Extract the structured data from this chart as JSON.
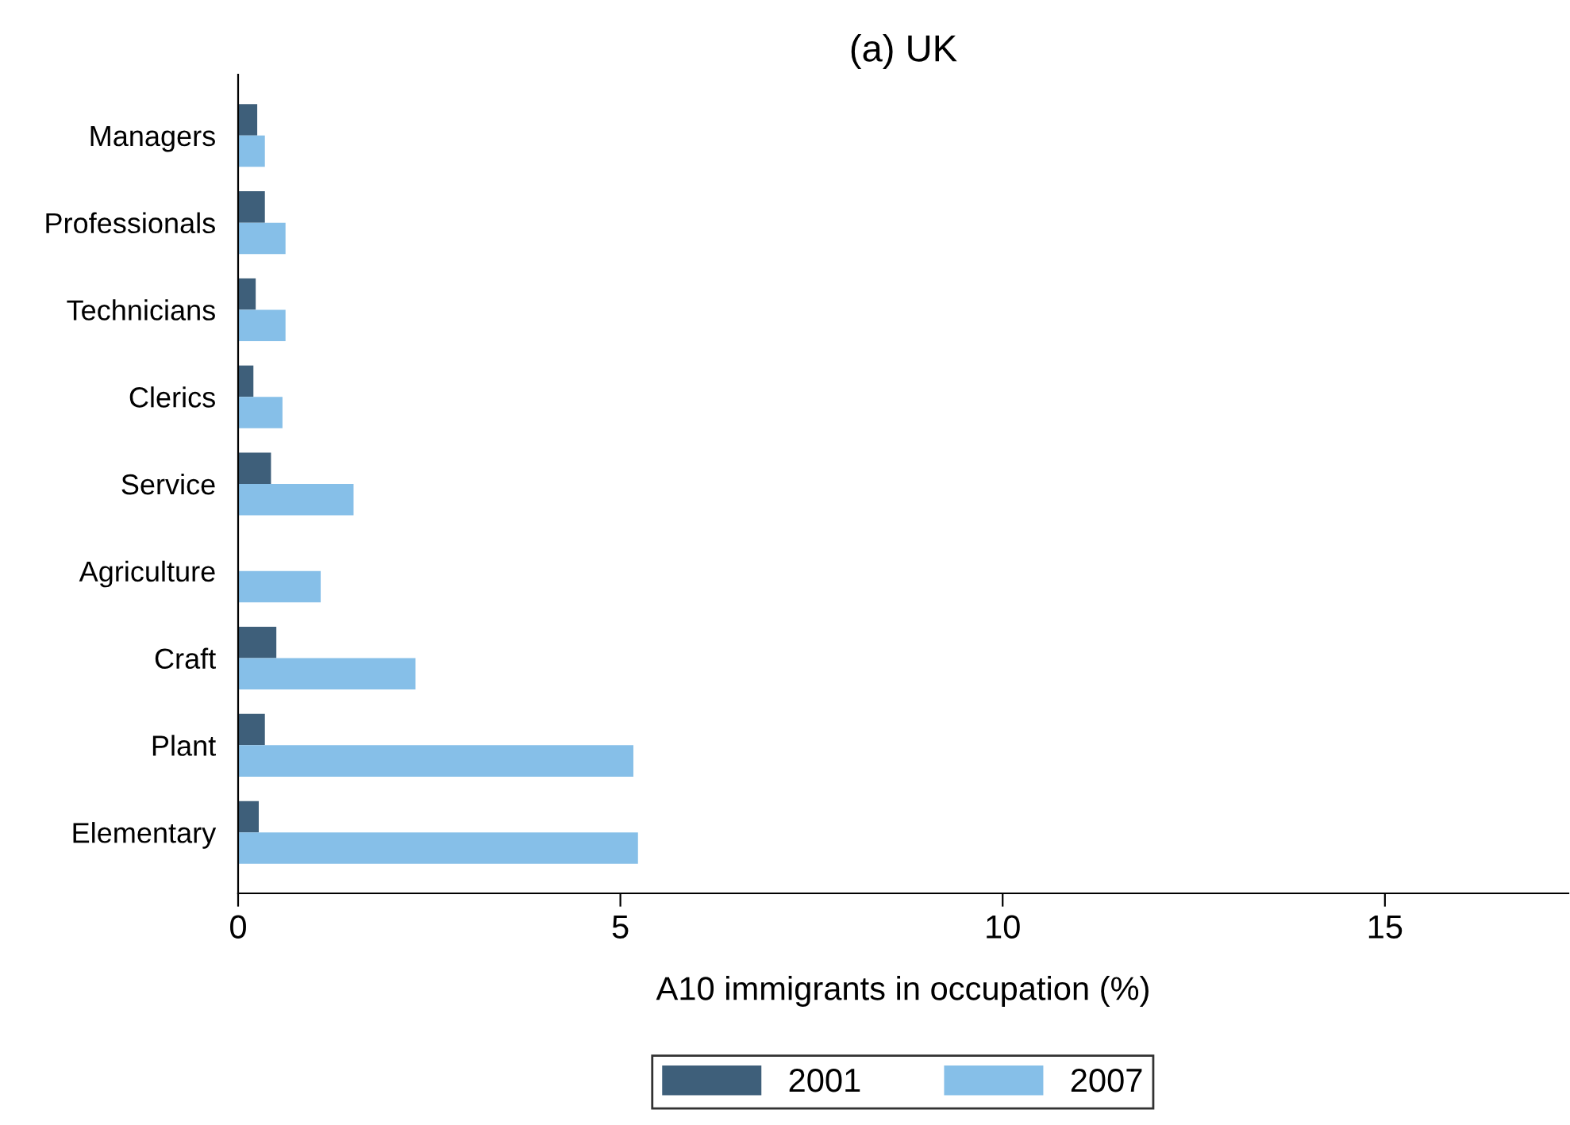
{
  "chart_data": {
    "type": "bar",
    "orientation": "horizontal",
    "title": "(a) UK",
    "xlabel": "A10 immigrants in occupation (%)",
    "categories": [
      "Managers",
      "Professionals",
      "Technicians",
      "Clerics",
      "Service",
      "Agriculture",
      "Craft",
      "Plant",
      "Elementary"
    ],
    "series": [
      {
        "name": "2001",
        "color": "#3e5f7a",
        "values": [
          0.25,
          0.35,
          0.23,
          0.2,
          0.43,
          0,
          0.5,
          0.35,
          0.27
        ]
      },
      {
        "name": "2007",
        "color": "#86bfe8",
        "values": [
          0.35,
          0.62,
          0.62,
          0.58,
          1.51,
          1.08,
          2.32,
          5.17,
          5.23
        ]
      }
    ],
    "xlim": [
      0,
      17.4
    ],
    "xticks": [
      0,
      5,
      10,
      15
    ],
    "grid": false,
    "legend": "bottom"
  }
}
